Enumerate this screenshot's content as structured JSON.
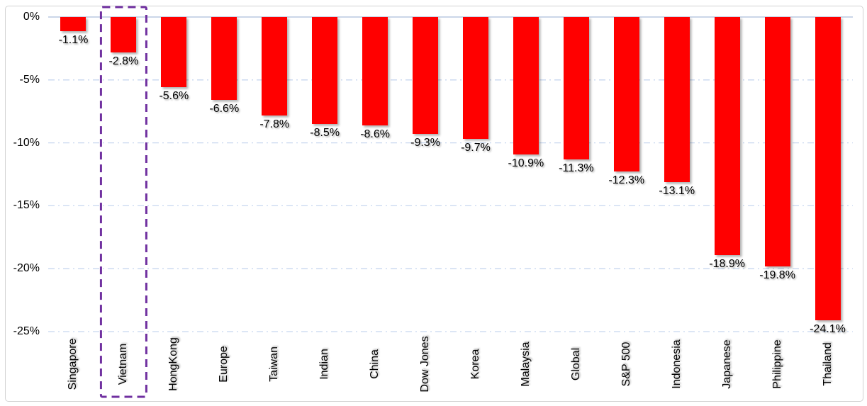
{
  "chart_data": {
    "type": "bar",
    "title": "",
    "orientation": "vertical",
    "categories": [
      "Singapore",
      "Vietnam",
      "HongKong",
      "Europe",
      "Taiwan",
      "Indian",
      "China",
      "Dow Jones",
      "Korea",
      "Malaysia",
      "Global",
      "S&P 500",
      "Indonesia",
      "Japanese",
      "Philippine",
      "Thailand"
    ],
    "values": [
      -1.1,
      -2.8,
      -5.6,
      -6.6,
      -7.8,
      -8.5,
      -8.6,
      -9.3,
      -9.7,
      -10.9,
      -11.3,
      -12.3,
      -13.1,
      -18.9,
      -19.8,
      -24.1
    ],
    "data_labels": [
      "-1.1%",
      "-2.8%",
      "-5.6%",
      "-6.6%",
      "-7.8%",
      "-8.5%",
      "-8.6%",
      "-9.3%",
      "-9.7%",
      "-10.9%",
      "-11.3%",
      "-12.3%",
      "-13.1%",
      "-18.9%",
      "-19.8%",
      "-24.1%"
    ],
    "xlabel": "",
    "ylabel": "",
    "ylim": [
      -25,
      0
    ],
    "yticks": [
      0,
      -5,
      -10,
      -15,
      -20,
      -25
    ],
    "ytick_labels": [
      "0%",
      "-5%",
      "-10%",
      "-15%",
      "-20%",
      "-25%"
    ],
    "grid": "horizontal-dash-dot",
    "legend_position": "none",
    "colors": {
      "bar": "#FF0000",
      "gridline": "#C7D7EF",
      "zero_line": "#CBD6E8",
      "text": "#000000",
      "frame_border": "#D2D2D2",
      "highlight_box": "#7030A0"
    },
    "highlight": {
      "category": "Vietnam",
      "style": "dashed-box"
    }
  }
}
